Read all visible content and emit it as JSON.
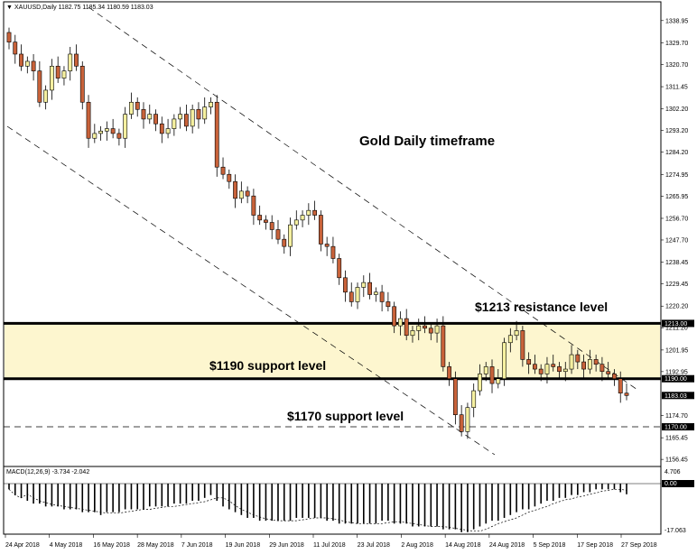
{
  "header": {
    "symbol_info": "XAUUSD,Daily  1182.75 1185.34 1180.59 1183.03"
  },
  "macd": {
    "label": "MACD(12,26,9) -3.734 -2.042",
    "scale_top": "4.706",
    "scale_zero": "0.00",
    "scale_bottom": "-17.063"
  },
  "annotations": {
    "title": "Gold Daily timeframe",
    "resistance_1213": "$1213 resistance level",
    "support_1190": "$1190 support level",
    "support_1170": "$1170 support level"
  },
  "colors": {
    "bull": "#f5f0a0",
    "bear": "#c8623a",
    "zone": "#fdf6cf",
    "up_wick": "#000000"
  },
  "chart_data": {
    "type": "candlestick",
    "title": "Gold Daily timeframe",
    "symbol": "XAUUSD",
    "timeframe": "Daily",
    "ylim": [
      1155,
      1343
    ],
    "y_ticks": [
      "1338.95",
      "1329.70",
      "1320.70",
      "1311.45",
      "1302.20",
      "1293.20",
      "1284.20",
      "1274.95",
      "1265.95",
      "1256.70",
      "1247.70",
      "1238.45",
      "1229.45",
      "1220.20",
      "1211.20",
      "1201.95",
      "1192.95",
      "1174.70",
      "1165.45",
      "1156.45"
    ],
    "x_ticks": [
      "24 Apr 2018",
      "4 May 2018",
      "16 May 2018",
      "28 May 2018",
      "7 Jun 2018",
      "19 Jun 2018",
      "29 Jun 2018",
      "11 Jul 2018",
      "23 Jul 2018",
      "2 Aug 2018",
      "14 Aug 2018",
      "24 Aug 2018",
      "5 Sep 2018",
      "17 Sep 2018",
      "27 Sep 2018"
    ],
    "price_tags": [
      "1213.00",
      "1190.00",
      "1183.03",
      "1170.00"
    ],
    "levels": [
      {
        "price": 1213,
        "style": "solid-thick"
      },
      {
        "price": 1190,
        "style": "solid-thick"
      },
      {
        "price": 1170,
        "style": "dashed"
      }
    ],
    "zone": {
      "from": 1190,
      "to": 1213
    },
    "closes": [
      1330,
      1325,
      1320,
      1322,
      1318,
      1305,
      1310,
      1320,
      1315,
      1318,
      1325,
      1320,
      1305,
      1290,
      1292,
      1293,
      1294,
      1292,
      1290,
      1300,
      1305,
      1302,
      1298,
      1300,
      1296,
      1292,
      1294,
      1298,
      1300,
      1295,
      1302,
      1298,
      1303,
      1305,
      1278,
      1275,
      1272,
      1265,
      1268,
      1266,
      1258,
      1256,
      1255,
      1252,
      1248,
      1245,
      1254,
      1256,
      1258,
      1260,
      1258,
      1246,
      1245,
      1240,
      1232,
      1226,
      1222,
      1228,
      1230,
      1225,
      1226,
      1222,
      1220,
      1212,
      1215,
      1208,
      1210,
      1212,
      1211,
      1209,
      1212,
      1195,
      1190,
      1175,
      1168,
      1178,
      1185,
      1192,
      1195,
      1188,
      1190,
      1205,
      1208,
      1210,
      1198,
      1196,
      1194,
      1192,
      1196,
      1195,
      1193,
      1194,
      1200,
      1197,
      1194,
      1198,
      1196,
      1193,
      1192,
      1190,
      1184,
      1183.03
    ],
    "macd_histogram": [
      -2,
      -4,
      -5,
      -6,
      -7,
      -7,
      -8,
      -8,
      -8,
      -9,
      -9,
      -9,
      -10,
      -10,
      -10,
      -11,
      -10,
      -10,
      -10,
      -9,
      -9,
      -9,
      -9,
      -8,
      -8,
      -8,
      -8,
      -7,
      -7,
      -7,
      -6,
      -6,
      -5,
      -4,
      -6,
      -8,
      -9,
      -10,
      -11,
      -12,
      -12,
      -13,
      -13,
      -13,
      -13,
      -13,
      -13,
      -12,
      -12,
      -12,
      -12,
      -12,
      -13,
      -13,
      -14,
      -14,
      -14,
      -14,
      -14,
      -14,
      -14,
      -13,
      -13,
      -14,
      -14,
      -14,
      -15,
      -15,
      -15,
      -15,
      -15,
      -16,
      -16,
      -16,
      -17,
      -17,
      -16,
      -15,
      -14,
      -13,
      -13,
      -12,
      -11,
      -10,
      -9,
      -9,
      -8,
      -7,
      -6,
      -6,
      -5,
      -5,
      -4,
      -4,
      -3,
      -3,
      -2,
      -2,
      -2,
      -2,
      -3,
      -3.734
    ]
  }
}
